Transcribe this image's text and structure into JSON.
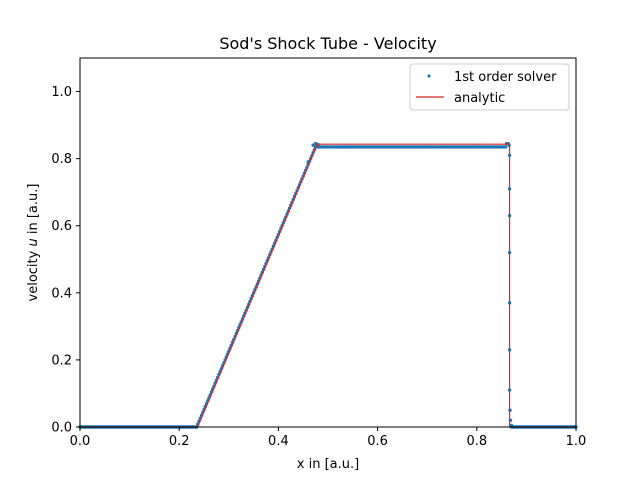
{
  "chart_data": {
    "type": "scatter",
    "title": "Sod's Shock Tube - Velocity",
    "xlabel": "x in [a.u.]",
    "ylabel_prefix": "velocity ",
    "ylabel_var": "u",
    "ylabel_suffix": " in [a.u.]",
    "xlim": [
      0.0,
      1.0
    ],
    "ylim": [
      0.0,
      1.1
    ],
    "xticks": [
      "0.0",
      "0.2",
      "0.4",
      "0.6",
      "0.8",
      "1.0"
    ],
    "yticks": [
      "0.0",
      "0.2",
      "0.4",
      "0.6",
      "0.8",
      "1.0"
    ],
    "grid": false,
    "legend_position": "top-right",
    "colors": {
      "solver": "#1f77b4",
      "analytic": "#d62728"
    },
    "series": [
      {
        "name": "1st order solver",
        "kind": "scatter",
        "segments": [
          {
            "x0": 0.0,
            "x1": 0.235,
            "y0": 0.0,
            "y1": 0.0
          },
          {
            "x0": 0.235,
            "x1": 0.475,
            "y0": 0.0,
            "y1": 0.835
          },
          {
            "x0": 0.475,
            "x1": 0.858,
            "y0": 0.835,
            "y1": 0.835
          },
          {
            "x0": 0.87,
            "x1": 1.0,
            "y0": 0.0,
            "y1": 0.0
          }
        ],
        "extra_points": [
          [
            0.46,
            0.79
          ],
          [
            0.47,
            0.84
          ],
          [
            0.475,
            0.845
          ],
          [
            0.48,
            0.842
          ],
          [
            0.86,
            0.845
          ],
          [
            0.862,
            0.845
          ],
          [
            0.864,
            0.843
          ],
          [
            0.865,
            0.84
          ],
          [
            0.866,
            0.81
          ],
          [
            0.866,
            0.71
          ],
          [
            0.866,
            0.63
          ],
          [
            0.866,
            0.52
          ],
          [
            0.866,
            0.37
          ],
          [
            0.866,
            0.23
          ],
          [
            0.866,
            0.11
          ],
          [
            0.867,
            0.05
          ],
          [
            0.868,
            0.02
          ],
          [
            0.87,
            0.005
          ]
        ]
      },
      {
        "name": "analytic",
        "kind": "line",
        "points": [
          [
            0.0,
            0.0
          ],
          [
            0.237,
            0.0
          ],
          [
            0.478,
            0.843
          ],
          [
            0.866,
            0.843
          ],
          [
            0.866,
            0.0
          ],
          [
            1.0,
            0.0
          ]
        ]
      }
    ]
  }
}
